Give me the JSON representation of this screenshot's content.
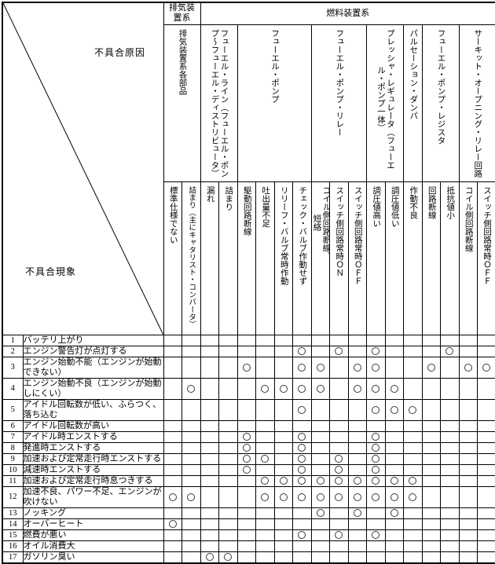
{
  "table": {
    "corner": {
      "cause_label": "不具合原因",
      "phenomenon_label": "不具合現象"
    },
    "top_groups": [
      {
        "label": "排気装\n置系",
        "span": 2
      },
      {
        "label": "燃料装置系",
        "span": 16
      }
    ],
    "groups": [
      {
        "label": "排気装置系各部品",
        "span": 2
      },
      {
        "label": "フューエル・ライン（フューエル・ポン\nプ～フューエル・ディストリビュータ）",
        "span": 2
      },
      {
        "label": "フューエル・ポンプ",
        "span": 4
      },
      {
        "label": "フューエル・ポンプ・リレー",
        "span": 3
      },
      {
        "label": "プレッシャ・レギュレータ（フューエ\nル・ポンプ一体）",
        "span": 2
      },
      {
        "label": "パルセーション・ダンパ",
        "span": 1
      },
      {
        "label": "フューエル・ポンプ・レジスタ",
        "span": 2
      },
      {
        "label": "サーキット・オープニング・リレー回路",
        "span": 2
      }
    ],
    "causes": [
      "標準仕様でない",
      "詰まり（主にキャタリスト・コンバータ）",
      "漏れ",
      "詰まり",
      "駆動回路断線",
      "吐出量不足",
      "リリーフ・バルブ常時作動",
      "チェック・バルブ作動せず",
      "コイル側回路断線、\n短絡",
      "スイッチ側回路常時ＯＮ",
      "スイッチ側回路常時ＯＦＦ",
      "調圧値高い",
      "調圧値低い",
      "作動不良",
      "回路断線",
      "抵抗値小",
      "コイル側回路断線",
      "スイッチ側回路常時ＯＦＦ"
    ],
    "mark_symbol": "○",
    "rows": [
      {
        "no": "1",
        "label": "バッテリ上がり",
        "marks": []
      },
      {
        "no": "2",
        "label": "エンジン警告灯が点灯する",
        "marks": [
          8,
          10,
          12,
          16
        ]
      },
      {
        "no": "3",
        "label": "エンジン始動不能（エンジンが始動できない）",
        "marks": [
          5,
          8,
          9,
          11,
          12,
          15,
          17,
          18
        ]
      },
      {
        "no": "4",
        "label": "エンジン始動不良（エンジンが始動しにくい）",
        "marks": [
          2,
          6,
          7,
          8,
          9,
          11,
          12,
          13
        ]
      },
      {
        "no": "5",
        "label": "アイドル回転数が低い、ふらつく、落ち込む",
        "marks": [
          8,
          12,
          13,
          14
        ]
      },
      {
        "no": "6",
        "label": "アイドル回転数が高い",
        "marks": []
      },
      {
        "no": "7",
        "label": "アイドル時エンストする",
        "marks": [
          5,
          8,
          12
        ]
      },
      {
        "no": "8",
        "label": "発進時エンストする",
        "marks": [
          5,
          8,
          12
        ]
      },
      {
        "no": "9",
        "label": "加速および定常走行時エンストする",
        "marks": [
          5,
          6,
          8,
          10,
          12
        ]
      },
      {
        "no": "10",
        "label": "減速時エンストする",
        "marks": [
          5,
          8,
          10,
          12
        ]
      },
      {
        "no": "11",
        "label": "加速および定常走行時息つきする",
        "marks": [
          6,
          7,
          8,
          9,
          10,
          11,
          12,
          13,
          14
        ]
      },
      {
        "no": "12",
        "label": "加速不良、パワー不足、エンジンが吹けない",
        "marks": [
          1,
          2,
          6,
          7,
          8,
          9,
          10,
          11,
          12,
          13,
          14
        ]
      },
      {
        "no": "13",
        "label": "ノッキング",
        "marks": [
          9,
          11,
          13
        ]
      },
      {
        "no": "14",
        "label": "オーバーヒート",
        "marks": [
          1
        ]
      },
      {
        "no": "15",
        "label": "燃費が悪い",
        "marks": [
          8,
          10,
          12
        ]
      },
      {
        "no": "16",
        "label": "オイル消費大",
        "marks": []
      },
      {
        "no": "17",
        "label": "ガソリン臭い",
        "marks": [
          3,
          4
        ]
      }
    ]
  }
}
